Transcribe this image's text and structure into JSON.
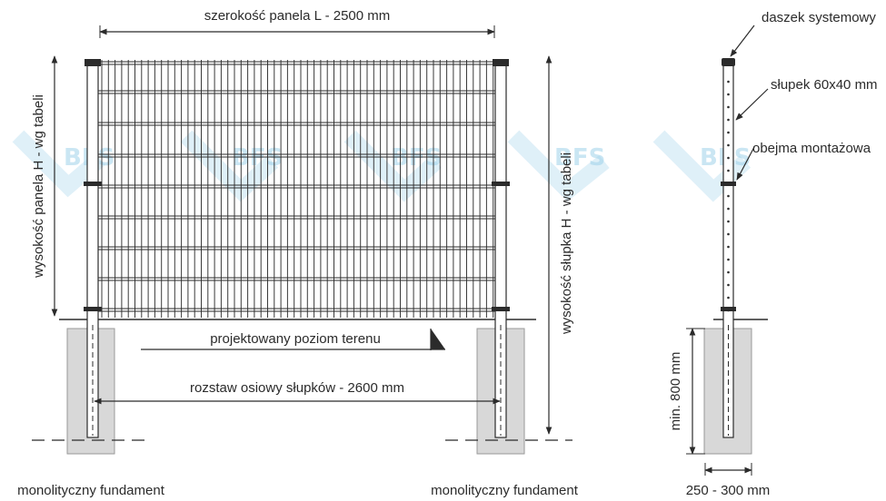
{
  "labels": {
    "panel_width": "szerokość panela L - 2500 mm",
    "panel_height": "wysokość panela H - wg tabeli",
    "post_height": "wysokość słupka H - wg tabeli",
    "ground_level": "projektowany poziom terenu",
    "post_spacing": "rozstaw osiowy słupków - 2600 mm",
    "foundation_left": "monolityczny fundament",
    "foundation_right": "monolityczny fundament",
    "cap": "daszek systemowy",
    "post": "słupek 60x40 mm",
    "clamp": "obejma montażowa",
    "min_depth": "min. 800 mm",
    "foundation_width": "250 - 300 mm"
  },
  "watermark": {
    "text": "BFS",
    "color": "#9fd2ea"
  },
  "colors": {
    "line": "#2b2b2b",
    "foundation": "#d8d8d8"
  }
}
